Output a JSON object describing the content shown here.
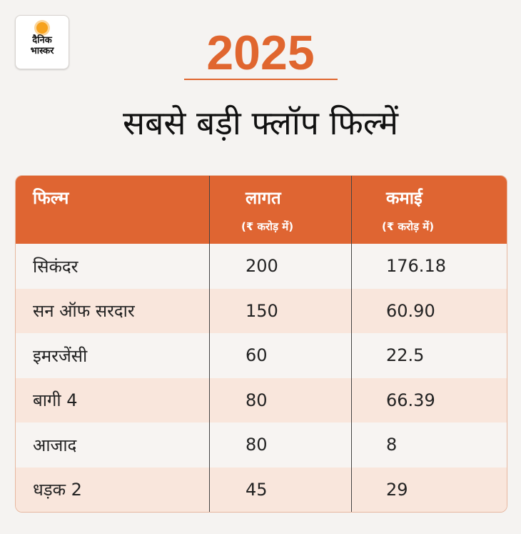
{
  "logo": {
    "line1": "दैनिक",
    "line2": "भास्कर"
  },
  "year": "2025",
  "title": "सबसे बड़ी फ्लॉप फिल्में",
  "colors": {
    "accent": "#df6532",
    "row_alt": "#f9e6dc",
    "background": "#f5f3f1"
  },
  "chart_data": {
    "type": "table",
    "title": "सबसे बड़ी फ्लॉप फिल्में",
    "columns": [
      {
        "label": "फिल्म",
        "sub": ""
      },
      {
        "label": "लागत",
        "sub": "(₹ करोड़ में)"
      },
      {
        "label": "कमाई",
        "sub": "(₹ करोड़ में)"
      }
    ],
    "rows": [
      [
        "सिकंदर",
        "200",
        "176.18"
      ],
      [
        "सन ऑफ सरदार",
        "150",
        "60.90"
      ],
      [
        "इमरजेंसी",
        "60",
        "22.5"
      ],
      [
        "बागी 4",
        "80",
        "66.39"
      ],
      [
        "आजाद",
        "80",
        "8"
      ],
      [
        "धड़क 2",
        "45",
        "29"
      ]
    ]
  }
}
